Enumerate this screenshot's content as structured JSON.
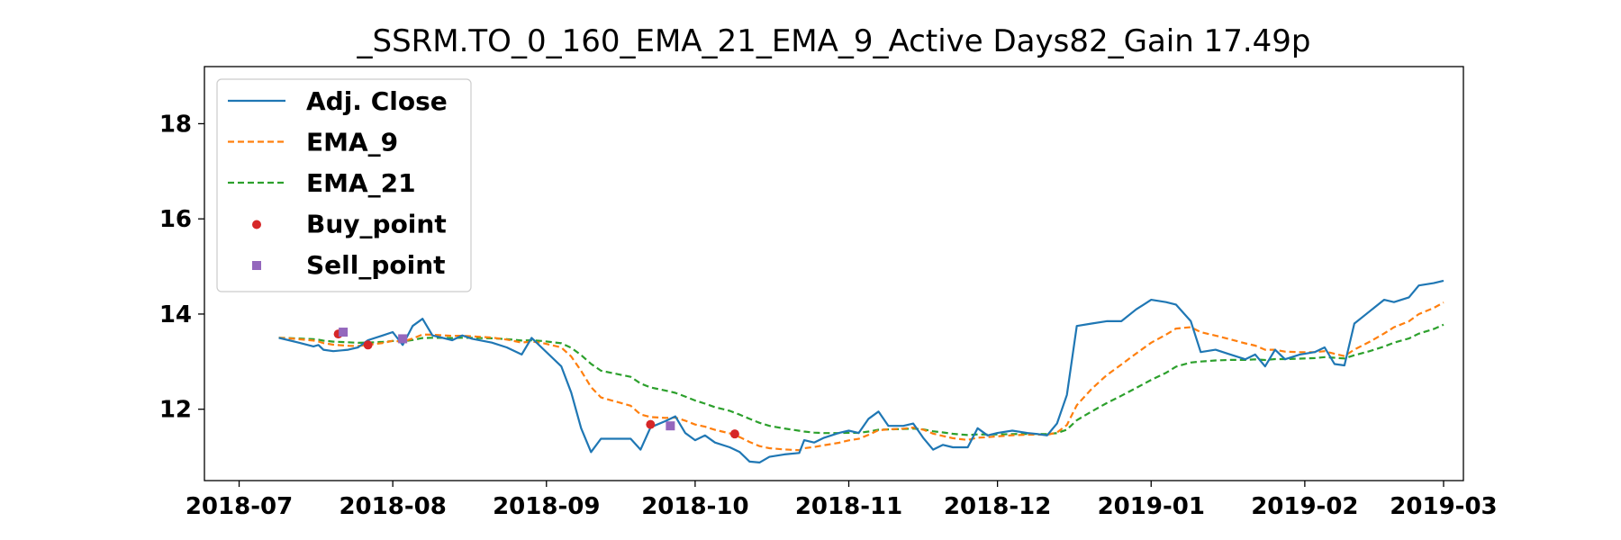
{
  "chart_data": {
    "type": "line",
    "title": "_SSRM.TO_0_160_EMA_21_EMA_9_Active Days82_Gain  17.49p",
    "xlabel": "",
    "ylabel": "",
    "x_range": [
      "2018-06-24",
      "2019-03-05"
    ],
    "ylim": [
      10.5,
      19.2
    ],
    "x_ticks": [
      "2018-07",
      "2018-08",
      "2018-09",
      "2018-10",
      "2018-11",
      "2018-12",
      "2019-01",
      "2019-02",
      "2019-03"
    ],
    "x_tick_dates": [
      "2018-07-01",
      "2018-08-01",
      "2018-09-01",
      "2018-10-01",
      "2018-11-01",
      "2018-12-01",
      "2019-01-01",
      "2019-02-01",
      "2019-03-01"
    ],
    "y_ticks": [
      12,
      14,
      16,
      18
    ],
    "grid": false,
    "legend_position": "top-left",
    "colors": {
      "adj_close": "#1f77b4",
      "ema_9": "#ff7f0e",
      "ema_21": "#2ca02c",
      "buy": "#d62728",
      "sell": "#9467bd"
    },
    "legend": [
      "Adj. Close",
      "EMA_9",
      "EMA_21",
      "Buy_point",
      "Sell_point"
    ],
    "series": [
      {
        "name": "Adj. Close",
        "style": "solid",
        "points": [
          [
            "2018-07-09",
            13.5
          ],
          [
            "2018-07-11",
            13.45
          ],
          [
            "2018-07-13",
            13.4
          ],
          [
            "2018-07-16",
            13.32
          ],
          [
            "2018-07-17",
            13.35
          ],
          [
            "2018-07-18",
            13.25
          ],
          [
            "2018-07-20",
            13.22
          ],
          [
            "2018-07-23",
            13.25
          ],
          [
            "2018-07-25",
            13.3
          ],
          [
            "2018-07-27",
            13.45
          ],
          [
            "2018-07-30",
            13.55
          ],
          [
            "2018-08-01",
            13.62
          ],
          [
            "2018-08-03",
            13.35
          ],
          [
            "2018-08-05",
            13.75
          ],
          [
            "2018-08-07",
            13.9
          ],
          [
            "2018-08-09",
            13.55
          ],
          [
            "2018-08-13",
            13.45
          ],
          [
            "2018-08-15",
            13.55
          ],
          [
            "2018-08-17",
            13.48
          ],
          [
            "2018-08-21",
            13.4
          ],
          [
            "2018-08-24",
            13.3
          ],
          [
            "2018-08-27",
            13.15
          ],
          [
            "2018-08-29",
            13.5
          ],
          [
            "2018-08-31",
            13.3
          ],
          [
            "2018-09-04",
            12.9
          ],
          [
            "2018-09-06",
            12.35
          ],
          [
            "2018-09-08",
            11.6
          ],
          [
            "2018-09-10",
            11.1
          ],
          [
            "2018-09-12",
            11.38
          ],
          [
            "2018-09-18",
            11.38
          ],
          [
            "2018-09-20",
            11.15
          ],
          [
            "2018-09-22",
            11.62
          ],
          [
            "2018-09-25",
            11.75
          ],
          [
            "2018-09-27",
            11.85
          ],
          [
            "2018-09-29",
            11.5
          ],
          [
            "2018-10-01",
            11.35
          ],
          [
            "2018-10-03",
            11.45
          ],
          [
            "2018-10-05",
            11.3
          ],
          [
            "2018-10-08",
            11.2
          ],
          [
            "2018-10-10",
            11.1
          ],
          [
            "2018-10-12",
            10.9
          ],
          [
            "2018-10-14",
            10.88
          ],
          [
            "2018-10-16",
            11.0
          ],
          [
            "2018-10-19",
            11.05
          ],
          [
            "2018-10-22",
            11.08
          ],
          [
            "2018-10-23",
            11.35
          ],
          [
            "2018-10-25",
            11.3
          ],
          [
            "2018-10-27",
            11.4
          ],
          [
            "2018-10-30",
            11.5
          ],
          [
            "2018-11-01",
            11.55
          ],
          [
            "2018-11-03",
            11.5
          ],
          [
            "2018-11-05",
            11.8
          ],
          [
            "2018-11-07",
            11.95
          ],
          [
            "2018-11-09",
            11.65
          ],
          [
            "2018-11-12",
            11.65
          ],
          [
            "2018-11-14",
            11.7
          ],
          [
            "2018-11-16",
            11.4
          ],
          [
            "2018-11-18",
            11.15
          ],
          [
            "2018-11-20",
            11.25
          ],
          [
            "2018-11-22",
            11.2
          ],
          [
            "2018-11-25",
            11.2
          ],
          [
            "2018-11-27",
            11.6
          ],
          [
            "2018-11-29",
            11.45
          ],
          [
            "2018-12-01",
            11.5
          ],
          [
            "2018-12-04",
            11.55
          ],
          [
            "2018-12-07",
            11.5
          ],
          [
            "2018-12-09",
            11.48
          ],
          [
            "2018-12-11",
            11.45
          ],
          [
            "2018-12-13",
            11.7
          ],
          [
            "2018-12-15",
            12.3
          ],
          [
            "2018-12-17",
            13.75
          ],
          [
            "2018-12-20",
            13.8
          ],
          [
            "2018-12-23",
            13.85
          ],
          [
            "2018-12-26",
            13.85
          ],
          [
            "2018-12-29",
            14.1
          ],
          [
            "2019-01-01",
            14.3
          ],
          [
            "2019-01-04",
            14.25
          ],
          [
            "2019-01-06",
            14.2
          ],
          [
            "2019-01-09",
            13.85
          ],
          [
            "2019-01-11",
            13.2
          ],
          [
            "2019-01-14",
            13.25
          ],
          [
            "2019-01-17",
            13.15
          ],
          [
            "2019-01-20",
            13.05
          ],
          [
            "2019-01-22",
            13.15
          ],
          [
            "2019-01-24",
            12.9
          ],
          [
            "2019-01-26",
            13.25
          ],
          [
            "2019-01-28",
            13.05
          ],
          [
            "2019-01-31",
            13.15
          ],
          [
            "2019-02-03",
            13.2
          ],
          [
            "2019-02-05",
            13.3
          ],
          [
            "2019-02-07",
            12.95
          ],
          [
            "2019-02-09",
            12.92
          ],
          [
            "2019-02-11",
            13.8
          ],
          [
            "2019-02-14",
            14.05
          ],
          [
            "2019-02-17",
            14.3
          ],
          [
            "2019-02-19",
            14.25
          ],
          [
            "2019-02-22",
            14.35
          ],
          [
            "2019-02-24",
            14.6
          ],
          [
            "2019-02-27",
            14.65
          ],
          [
            "2019-03-01",
            14.7
          ]
        ]
      },
      {
        "name": "EMA_9",
        "style": "dashed",
        "points": []
      },
      {
        "name": "EMA_21",
        "style": "dashed",
        "points": []
      }
    ],
    "buy_points": [
      [
        "2018-07-21",
        13.58
      ],
      [
        "2018-07-27",
        13.35
      ],
      [
        "2018-09-22",
        11.68
      ],
      [
        "2018-10-09",
        11.48
      ]
    ],
    "sell_points": [
      [
        "2018-07-22",
        13.62
      ],
      [
        "2018-08-03",
        13.48
      ],
      [
        "2018-09-26",
        11.65
      ]
    ]
  }
}
